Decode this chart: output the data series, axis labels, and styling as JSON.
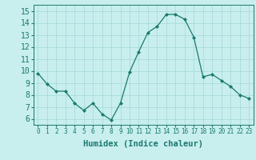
{
  "x": [
    0,
    1,
    2,
    3,
    4,
    5,
    6,
    7,
    8,
    9,
    10,
    11,
    12,
    13,
    14,
    15,
    16,
    17,
    18,
    19,
    20,
    21,
    22,
    23
  ],
  "y": [
    9.8,
    8.9,
    8.3,
    8.3,
    7.3,
    6.7,
    7.3,
    6.4,
    5.9,
    7.3,
    9.9,
    11.6,
    13.2,
    13.7,
    14.7,
    14.7,
    14.3,
    12.8,
    9.5,
    9.7,
    9.2,
    8.7,
    8.0,
    7.7
  ],
  "xlim": [
    -0.5,
    23.5
  ],
  "ylim": [
    5.5,
    15.5
  ],
  "yticks": [
    6,
    7,
    8,
    9,
    10,
    11,
    12,
    13,
    14,
    15
  ],
  "xticks": [
    0,
    1,
    2,
    3,
    4,
    5,
    6,
    7,
    8,
    9,
    10,
    11,
    12,
    13,
    14,
    15,
    16,
    17,
    18,
    19,
    20,
    21,
    22,
    23
  ],
  "xlabel": "Humidex (Indice chaleur)",
  "line_color": "#1a7a6e",
  "marker": "D",
  "marker_size": 2.0,
  "bg_color": "#c8eeee",
  "grid_color": "#aadddd",
  "tick_color": "#1a7a6e",
  "label_color": "#1a7a6e",
  "font": "monospace",
  "xlabel_fontsize": 7.5,
  "ytick_fontsize": 7,
  "xtick_fontsize": 5.5
}
